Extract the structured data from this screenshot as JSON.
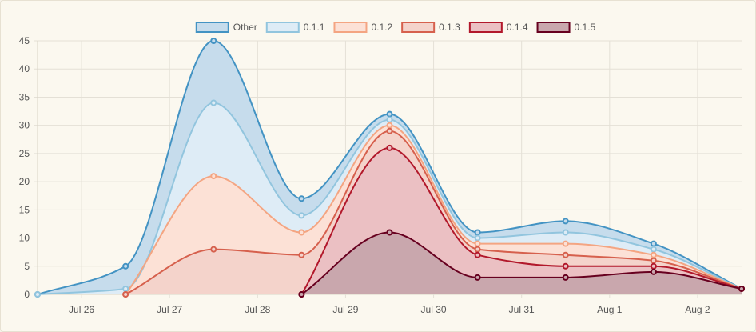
{
  "chart_data": {
    "type": "area",
    "stacked": true,
    "x": [
      "2021-07-25",
      "2021-07-26",
      "2021-07-27",
      "2021-07-28",
      "2021-07-29",
      "2021-07-30",
      "2021-07-31",
      "2021-08-01",
      "2021-08-02"
    ],
    "x_tick_labels": [
      "Jul 26",
      "Jul 27",
      "Jul 28",
      "Jul 29",
      "Jul 30",
      "Jul 31",
      "Aug 1",
      "Aug 2"
    ],
    "ylim": [
      0,
      45
    ],
    "y_ticks": [
      0,
      5,
      10,
      15,
      20,
      25,
      30,
      35,
      40,
      45
    ],
    "grid": true,
    "legend": "top-center",
    "series": [
      {
        "name": "0.1.5",
        "values": [
          null,
          null,
          null,
          0,
          11,
          3,
          3,
          4,
          1
        ],
        "line_color": "#67001f",
        "fill_color": "#c9a7ad"
      },
      {
        "name": "0.1.4",
        "values": [
          null,
          null,
          null,
          0,
          15,
          4,
          2,
          1,
          0
        ],
        "line_color": "#b2182b",
        "fill_color": "#ebc0c3"
      },
      {
        "name": "0.1.3",
        "values": [
          null,
          0,
          8,
          7,
          3,
          1,
          2,
          1,
          0
        ],
        "line_color": "#d6604d",
        "fill_color": "#f4d3cb"
      },
      {
        "name": "0.1.2",
        "values": [
          null,
          0,
          13,
          4,
          1,
          1,
          2,
          1,
          0
        ],
        "line_color": "#f4a582",
        "fill_color": "#fce1d6"
      },
      {
        "name": "0.1.1",
        "values": [
          0,
          1,
          13,
          3,
          1,
          1,
          2,
          1,
          0
        ],
        "line_color": "#92c5de",
        "fill_color": "#deecf6"
      },
      {
        "name": "Other",
        "values": [
          0,
          4,
          11,
          3,
          1,
          1,
          2,
          1,
          0
        ],
        "line_color": "#4393c3",
        "fill_color": "#c6dcec"
      }
    ]
  }
}
